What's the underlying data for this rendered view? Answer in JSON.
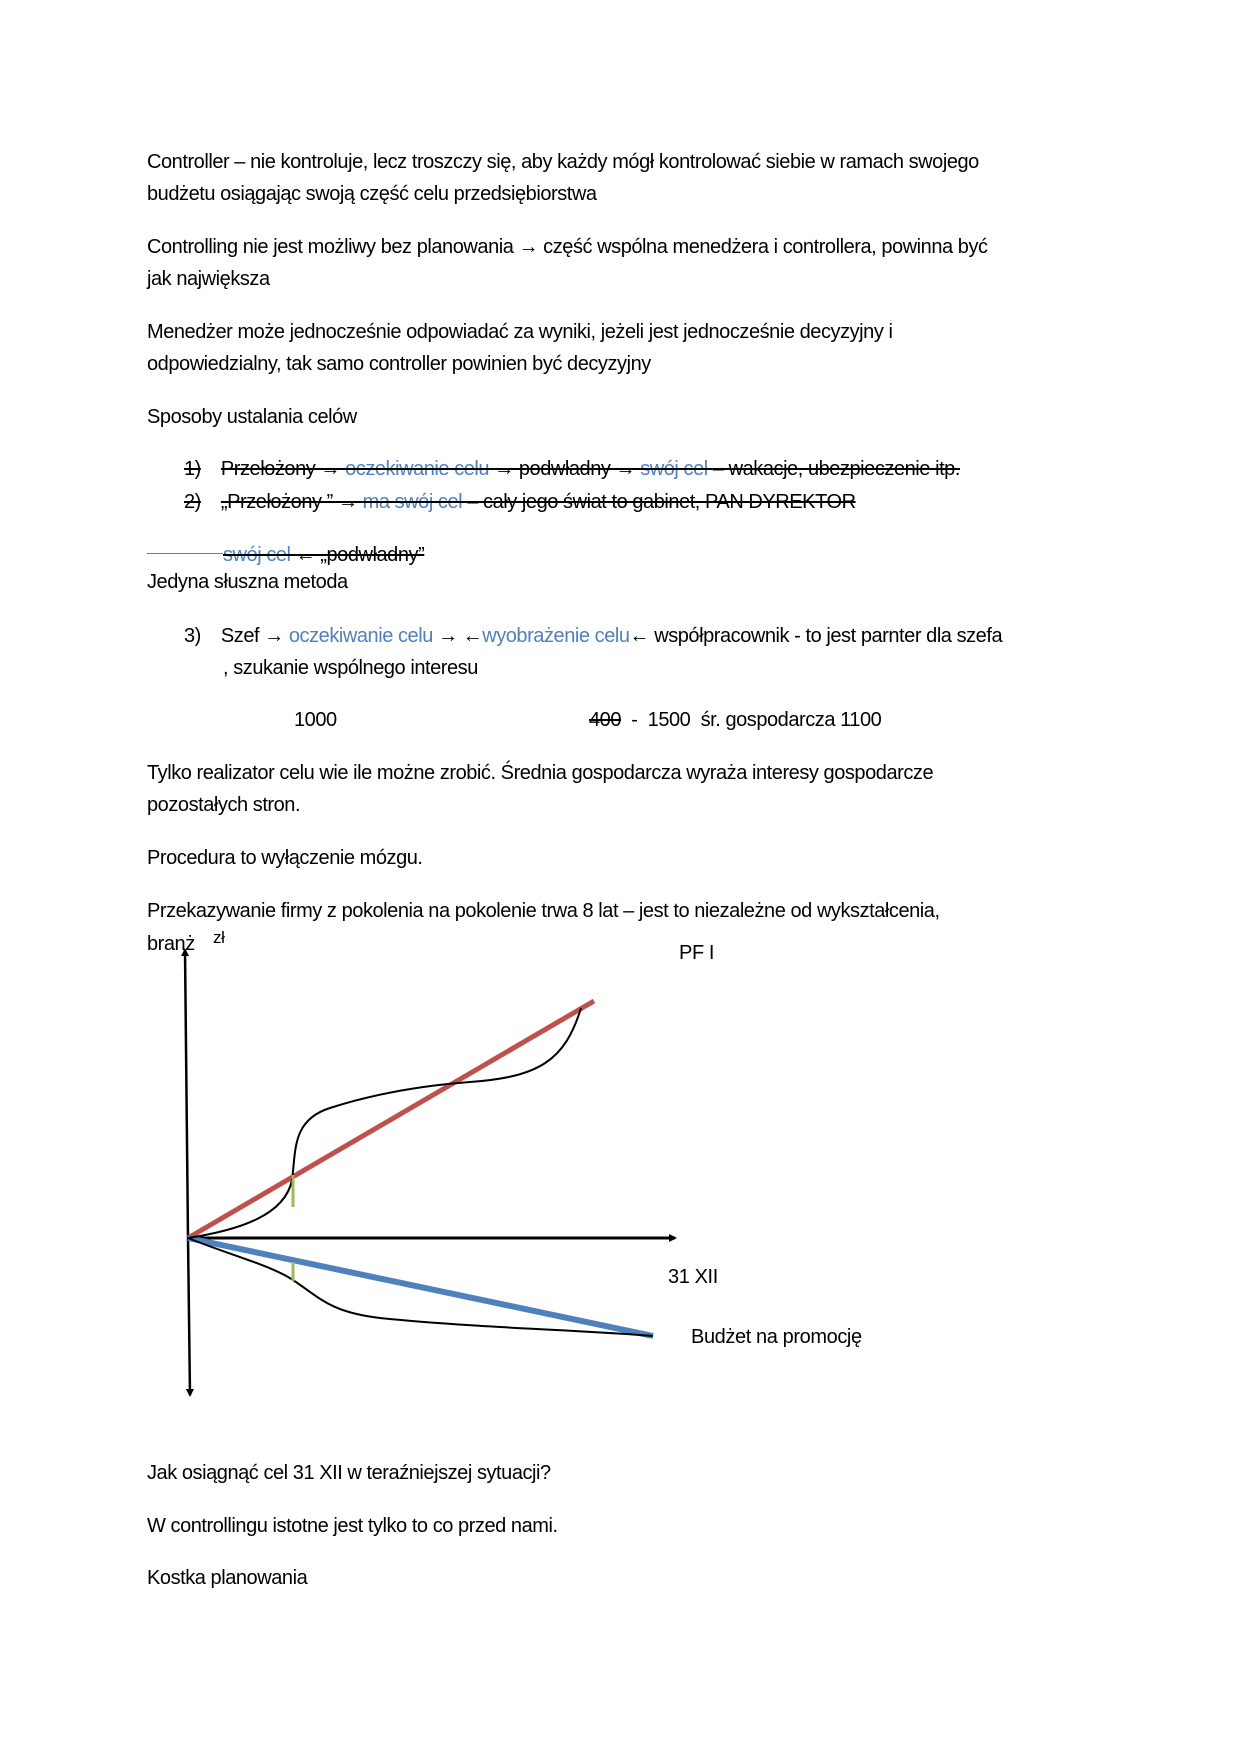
{
  "paragraphs": {
    "p1": [
      "Controller – nie kontroluje, lecz troszczy się, aby każdy mógł kontrolować siebie w ramach swojego",
      "budżetu osiągając swoją część celu przedsiębiorstwa"
    ],
    "p2": [
      "Controlling nie jest możliwy bez planowania → część wspólna menedżera i controllera, powinna być",
      "jak największa"
    ],
    "p3": [
      "Menedżer może jednocześnie odpowiadać za wyniki, jeżeli jest jednocześnie decyzyjny i",
      "odpowiedzialny, tak samo controller powinien być decyzyjny"
    ],
    "p4": "Sposoby ustalania celów"
  },
  "list": {
    "item1": {
      "num": "1)",
      "a": "Przełożony → ",
      "b": "oczekiwanie celu ",
      "c": "→ podwładny → ",
      "d": "swój cel ",
      "e": "– wakacje, ubezpieczenie itp."
    },
    "item2": {
      "num": "2)",
      "a": "„Przełożony ” → ",
      "b": "ma swój cel ",
      "c": "– cały jego świat to gabinet, PAN DYREKTOR"
    },
    "item2b": {
      "b": "swój cel ",
      "c": "← „podwładny”"
    },
    "jedyna": "Jedyna słuszna metoda",
    "item3": {
      "num": "3)",
      "a": "Szef → ",
      "b": "oczekiwanie celu",
      "c": " → ←",
      "d": "wyobrażenie celu",
      "e": "← współpracownik  - to jest parnter dla szefa",
      "line2": ", szukanie wspólnego interesu"
    }
  },
  "numbers": {
    "n1": "1000",
    "n2": "400",
    "n3": "  -  1500  śr. gospodarcza 1100"
  },
  "paragraphs2": {
    "p5": [
      "Tylko realizator celu wie ile możne zrobić. Średnia gospodarcza wyraża interesy gospodarcze",
      "pozostałych stron."
    ],
    "p6": "Procedura to wyłączenie mózgu.",
    "p7": [
      "Przekazywanie firmy z pokolenia na pokolenie trwa 8 lat – jest to niezależne od wykształcenia,",
      "branż"
    ]
  },
  "diagram": {
    "y_label": "zł",
    "top_label": "PF I",
    "x_label": "31 XII",
    "bottom_label": "Budżet na promocję",
    "colors": {
      "plan_up": "#c0504d",
      "plan_down": "#4f81bd",
      "gap": "#9bbb59",
      "actual": "#000000"
    }
  },
  "closing": {
    "q": "Jak osiągnąć cel 31 XII w teraźniejszej sytuacji?",
    "s": "W controllingu istotne jest tylko to co przed nami.",
    "k": "Kostka planowania"
  }
}
